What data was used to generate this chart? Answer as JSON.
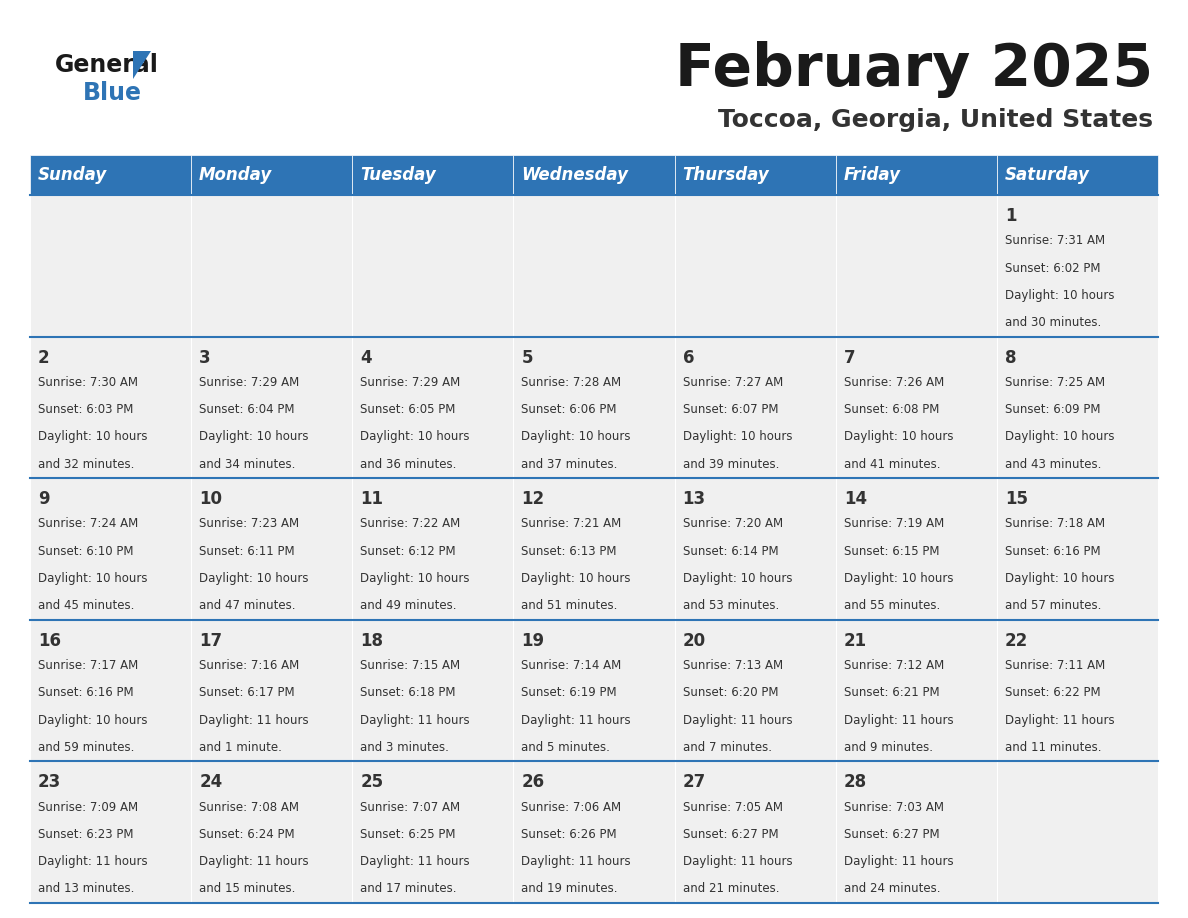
{
  "title": "February 2025",
  "subtitle": "Toccoa, Georgia, United States",
  "header_color": "#2E74B5",
  "header_text_color": "#FFFFFF",
  "days_of_week": [
    "Sunday",
    "Monday",
    "Tuesday",
    "Wednesday",
    "Thursday",
    "Friday",
    "Saturday"
  ],
  "background_color": "#FFFFFF",
  "cell_bg_color": "#F0F0F0",
  "separator_color": "#2E74B5",
  "text_color": "#333333",
  "calendar_data": [
    {
      "day": 1,
      "col": 6,
      "row": 0,
      "sunrise": "7:31 AM",
      "sunset": "6:02 PM",
      "daylight_hours": 10,
      "daylight_minutes": 30
    },
    {
      "day": 2,
      "col": 0,
      "row": 1,
      "sunrise": "7:30 AM",
      "sunset": "6:03 PM",
      "daylight_hours": 10,
      "daylight_minutes": 32
    },
    {
      "day": 3,
      "col": 1,
      "row": 1,
      "sunrise": "7:29 AM",
      "sunset": "6:04 PM",
      "daylight_hours": 10,
      "daylight_minutes": 34
    },
    {
      "day": 4,
      "col": 2,
      "row": 1,
      "sunrise": "7:29 AM",
      "sunset": "6:05 PM",
      "daylight_hours": 10,
      "daylight_minutes": 36
    },
    {
      "day": 5,
      "col": 3,
      "row": 1,
      "sunrise": "7:28 AM",
      "sunset": "6:06 PM",
      "daylight_hours": 10,
      "daylight_minutes": 37
    },
    {
      "day": 6,
      "col": 4,
      "row": 1,
      "sunrise": "7:27 AM",
      "sunset": "6:07 PM",
      "daylight_hours": 10,
      "daylight_minutes": 39
    },
    {
      "day": 7,
      "col": 5,
      "row": 1,
      "sunrise": "7:26 AM",
      "sunset": "6:08 PM",
      "daylight_hours": 10,
      "daylight_minutes": 41
    },
    {
      "day": 8,
      "col": 6,
      "row": 1,
      "sunrise": "7:25 AM",
      "sunset": "6:09 PM",
      "daylight_hours": 10,
      "daylight_minutes": 43
    },
    {
      "day": 9,
      "col": 0,
      "row": 2,
      "sunrise": "7:24 AM",
      "sunset": "6:10 PM",
      "daylight_hours": 10,
      "daylight_minutes": 45
    },
    {
      "day": 10,
      "col": 1,
      "row": 2,
      "sunrise": "7:23 AM",
      "sunset": "6:11 PM",
      "daylight_hours": 10,
      "daylight_minutes": 47
    },
    {
      "day": 11,
      "col": 2,
      "row": 2,
      "sunrise": "7:22 AM",
      "sunset": "6:12 PM",
      "daylight_hours": 10,
      "daylight_minutes": 49
    },
    {
      "day": 12,
      "col": 3,
      "row": 2,
      "sunrise": "7:21 AM",
      "sunset": "6:13 PM",
      "daylight_hours": 10,
      "daylight_minutes": 51
    },
    {
      "day": 13,
      "col": 4,
      "row": 2,
      "sunrise": "7:20 AM",
      "sunset": "6:14 PM",
      "daylight_hours": 10,
      "daylight_minutes": 53
    },
    {
      "day": 14,
      "col": 5,
      "row": 2,
      "sunrise": "7:19 AM",
      "sunset": "6:15 PM",
      "daylight_hours": 10,
      "daylight_minutes": 55
    },
    {
      "day": 15,
      "col": 6,
      "row": 2,
      "sunrise": "7:18 AM",
      "sunset": "6:16 PM",
      "daylight_hours": 10,
      "daylight_minutes": 57
    },
    {
      "day": 16,
      "col": 0,
      "row": 3,
      "sunrise": "7:17 AM",
      "sunset": "6:16 PM",
      "daylight_hours": 10,
      "daylight_minutes": 59
    },
    {
      "day": 17,
      "col": 1,
      "row": 3,
      "sunrise": "7:16 AM",
      "sunset": "6:17 PM",
      "daylight_hours": 11,
      "daylight_minutes": 1
    },
    {
      "day": 18,
      "col": 2,
      "row": 3,
      "sunrise": "7:15 AM",
      "sunset": "6:18 PM",
      "daylight_hours": 11,
      "daylight_minutes": 3
    },
    {
      "day": 19,
      "col": 3,
      "row": 3,
      "sunrise": "7:14 AM",
      "sunset": "6:19 PM",
      "daylight_hours": 11,
      "daylight_minutes": 5
    },
    {
      "day": 20,
      "col": 4,
      "row": 3,
      "sunrise": "7:13 AM",
      "sunset": "6:20 PM",
      "daylight_hours": 11,
      "daylight_minutes": 7
    },
    {
      "day": 21,
      "col": 5,
      "row": 3,
      "sunrise": "7:12 AM",
      "sunset": "6:21 PM",
      "daylight_hours": 11,
      "daylight_minutes": 9
    },
    {
      "day": 22,
      "col": 6,
      "row": 3,
      "sunrise": "7:11 AM",
      "sunset": "6:22 PM",
      "daylight_hours": 11,
      "daylight_minutes": 11
    },
    {
      "day": 23,
      "col": 0,
      "row": 4,
      "sunrise": "7:09 AM",
      "sunset": "6:23 PM",
      "daylight_hours": 11,
      "daylight_minutes": 13
    },
    {
      "day": 24,
      "col": 1,
      "row": 4,
      "sunrise": "7:08 AM",
      "sunset": "6:24 PM",
      "daylight_hours": 11,
      "daylight_minutes": 15
    },
    {
      "day": 25,
      "col": 2,
      "row": 4,
      "sunrise": "7:07 AM",
      "sunset": "6:25 PM",
      "daylight_hours": 11,
      "daylight_minutes": 17
    },
    {
      "day": 26,
      "col": 3,
      "row": 4,
      "sunrise": "7:06 AM",
      "sunset": "6:26 PM",
      "daylight_hours": 11,
      "daylight_minutes": 19
    },
    {
      "day": 27,
      "col": 4,
      "row": 4,
      "sunrise": "7:05 AM",
      "sunset": "6:27 PM",
      "daylight_hours": 11,
      "daylight_minutes": 21
    },
    {
      "day": 28,
      "col": 5,
      "row": 4,
      "sunrise": "7:03 AM",
      "sunset": "6:27 PM",
      "daylight_hours": 11,
      "daylight_minutes": 24
    }
  ]
}
